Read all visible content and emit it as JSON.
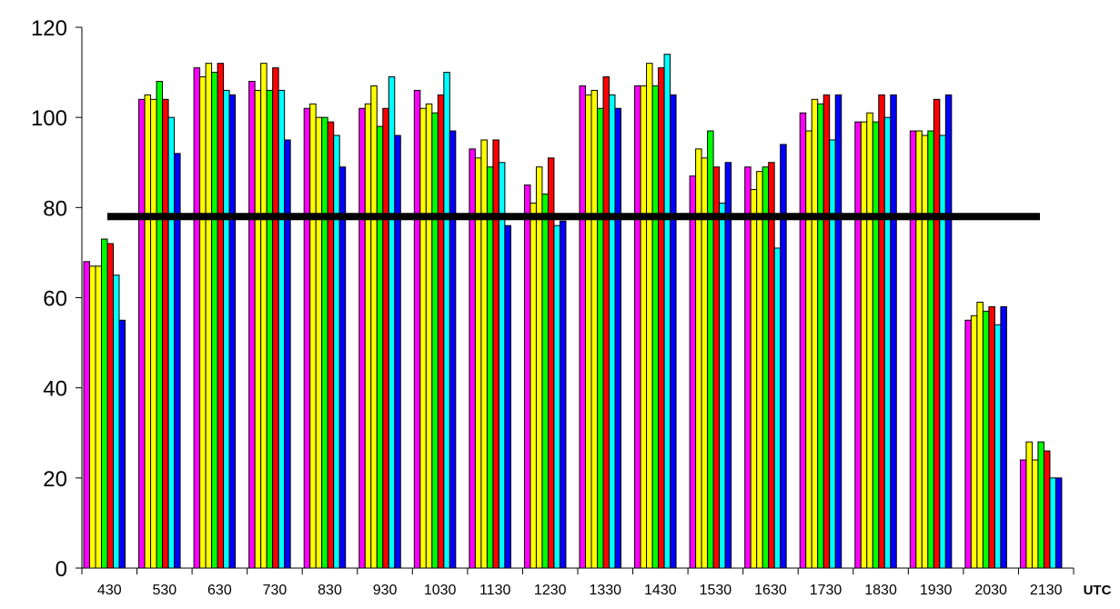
{
  "chart_data": {
    "type": "bar",
    "title": "",
    "xlabel": "UTC",
    "ylabel": "",
    "ylim": [
      0,
      120
    ],
    "yticks": [
      0,
      20,
      40,
      60,
      80,
      100,
      120
    ],
    "grid": false,
    "legend": "none",
    "categories": [
      "430",
      "530",
      "630",
      "730",
      "830",
      "930",
      "1030",
      "1130",
      "1230",
      "1330",
      "1430",
      "1530",
      "1630",
      "1730",
      "1830",
      "1930",
      "2030",
      "2130"
    ],
    "series": [
      {
        "color": "#ff00ff",
        "values": [
          68,
          104,
          111,
          108,
          102,
          102,
          106,
          93,
          85,
          107,
          107,
          87,
          89,
          101,
          99,
          97,
          55,
          24
        ]
      },
      {
        "color": "#ffff00",
        "values": [
          67,
          105,
          109,
          106,
          103,
          103,
          102,
          91,
          81,
          105,
          107,
          93,
          84,
          97,
          99,
          97,
          56,
          28
        ]
      },
      {
        "color": "#ffff00",
        "values": [
          67,
          104,
          112,
          112,
          100,
          107,
          103,
          95,
          89,
          106,
          112,
          91,
          88,
          104,
          101,
          96,
          59,
          24
        ]
      },
      {
        "color": "#00ff00",
        "values": [
          73,
          108,
          110,
          106,
          100,
          98,
          101,
          89,
          83,
          102,
          107,
          97,
          89,
          103,
          99,
          97,
          57,
          28
        ]
      },
      {
        "color": "#ff0000",
        "values": [
          72,
          104,
          112,
          111,
          99,
          102,
          105,
          95,
          91,
          109,
          111,
          89,
          90,
          105,
          105,
          104,
          58,
          26
        ]
      },
      {
        "color": "#00ffff",
        "values": [
          65,
          100,
          106,
          106,
          96,
          109,
          110,
          90,
          76,
          105,
          114,
          81,
          71,
          95,
          100,
          96,
          54,
          20
        ]
      },
      {
        "color": "#0000ff",
        "values": [
          55,
          92,
          105,
          95,
          89,
          96,
          97,
          76,
          77,
          102,
          105,
          90,
          94,
          105,
          105,
          105,
          58,
          20
        ]
      }
    ],
    "reference_line": {
      "y": 78,
      "color": "#000000"
    }
  }
}
